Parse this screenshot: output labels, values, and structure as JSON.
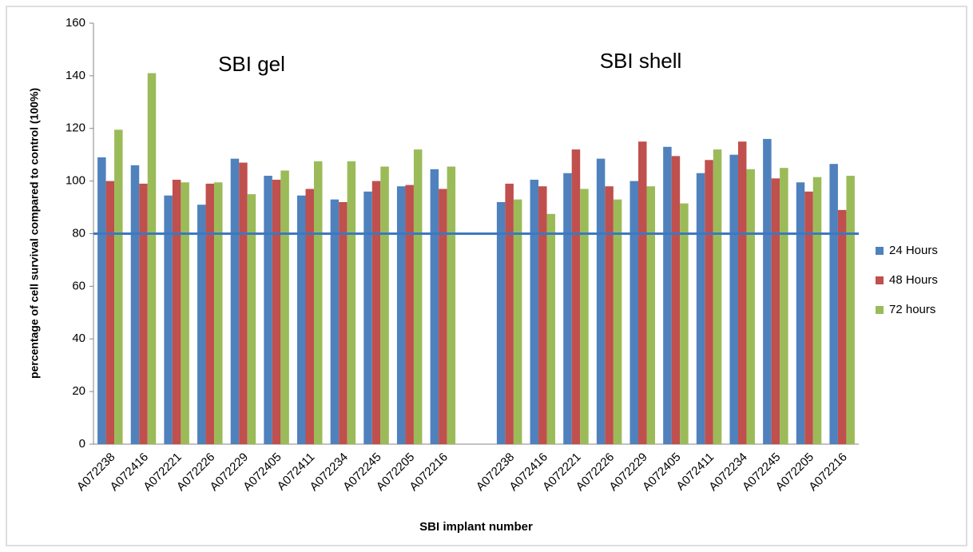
{
  "chart_data": {
    "type": "bar",
    "xlabel": "SBI implant number",
    "ylabel": "percentage of cell survival compared to control (100%)",
    "annotations": [
      "SBI gel",
      "SBI shell"
    ],
    "categories": [
      "A072238",
      "A072416",
      "A072221",
      "A072226",
      "A072229",
      "A072405",
      "A072411",
      "A072234",
      "A072245",
      "A072205",
      "A072216",
      null,
      "A072238",
      "A072416",
      "A072221",
      "A072226",
      "A072229",
      "A072405",
      "A072411",
      "A072234",
      "A072245",
      "A072205",
      "A072216"
    ],
    "series": [
      {
        "name": "24 Hours",
        "color": "#4f81bd",
        "values": [
          109,
          106,
          94.5,
          91,
          108.5,
          102,
          94.5,
          93,
          96,
          98,
          104.5,
          null,
          92,
          100.5,
          103,
          108.5,
          100,
          113,
          103,
          110,
          116,
          99.5,
          106.5
        ]
      },
      {
        "name": "48 Hours",
        "color": "#c0504d",
        "values": [
          100,
          99,
          100.5,
          99,
          107,
          100.5,
          97,
          92,
          100,
          98.5,
          97,
          null,
          99,
          98,
          112,
          98,
          115,
          109.5,
          108,
          115,
          101,
          96,
          89
        ]
      },
      {
        "name": "72 hours",
        "color": "#9bbb59",
        "values": [
          119.5,
          141,
          99.5,
          99.5,
          95,
          104,
          107.5,
          107.5,
          105.5,
          112,
          105.5,
          null,
          93,
          87.5,
          97,
          93,
          98,
          91.5,
          112,
          104.5,
          105,
          101.5,
          102
        ]
      }
    ],
    "reference_line": {
      "value": 80,
      "color": "#3d78c0"
    },
    "ylim": [
      0,
      160
    ],
    "yticks": [
      0,
      20,
      40,
      60,
      80,
      100,
      120,
      140,
      160
    ],
    "grid": false,
    "legend": "right"
  }
}
